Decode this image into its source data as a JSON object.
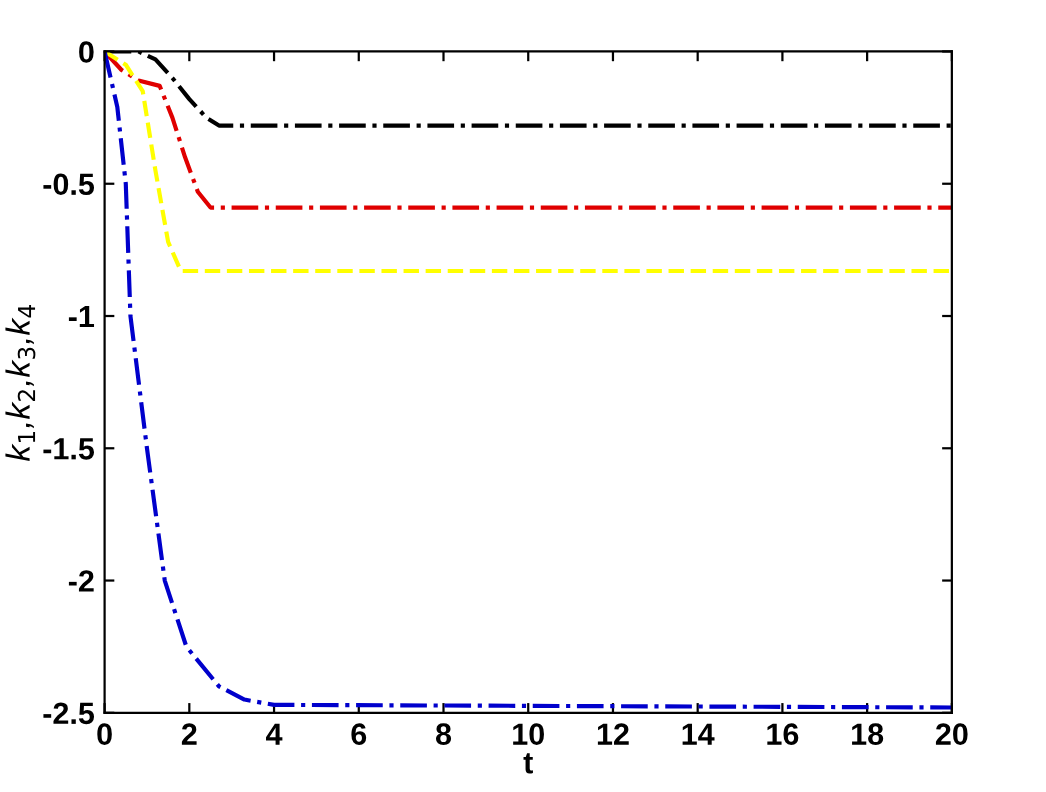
{
  "chart_data": {
    "type": "line",
    "xlabel": "t",
    "ylabel": "k$_{1}$,k$_{2}$,k$_{3}$,k$_{4}$",
    "xlim": [
      0,
      20
    ],
    "ylim": [
      -2.5,
      0
    ],
    "xticks": [
      0,
      2,
      4,
      6,
      8,
      10,
      12,
      14,
      16,
      18,
      20
    ],
    "yticks": [
      {
        "value": 0,
        "label": "0"
      },
      {
        "value": -0.5,
        "label": "-0.5"
      },
      {
        "value": -1,
        "label": "-1"
      },
      {
        "value": -1.5,
        "label": "-1.5"
      },
      {
        "value": -2,
        "label": "-2"
      },
      {
        "value": -2.5,
        "label": "-2.5"
      }
    ],
    "grid": false,
    "legend": false,
    "marker": "none",
    "series": [
      {
        "color": "#000000",
        "line_style": "dashdot",
        "x": [
          0,
          0.8,
          1.2,
          1.6,
          2.0,
          2.4,
          2.7,
          20
        ],
        "values": [
          0,
          0,
          -0.03,
          -0.1,
          -0.18,
          -0.25,
          -0.28,
          -0.28
        ]
      },
      {
        "color": "#e00000",
        "line_style": "dashdot",
        "x": [
          0,
          0.4,
          0.8,
          1.3,
          1.6,
          1.9,
          2.2,
          2.5,
          20
        ],
        "values": [
          0,
          -0.07,
          -0.11,
          -0.13,
          -0.25,
          -0.4,
          -0.53,
          -0.59,
          -0.59
        ]
      },
      {
        "color": "#ffff00",
        "line_style": "dashed",
        "x": [
          0,
          0.5,
          0.9,
          1.2,
          1.5,
          1.8,
          20
        ],
        "values": [
          0,
          -0.05,
          -0.15,
          -0.45,
          -0.72,
          -0.83,
          -0.83
        ]
      },
      {
        "color": "#0000cc",
        "line_style": "dashdot",
        "x": [
          0,
          0.3,
          0.5,
          0.61,
          1.0,
          1.42,
          1.93,
          2.7,
          3.3,
          4.0,
          20
        ],
        "values": [
          0,
          -0.21,
          -0.5,
          -1,
          -1.5,
          -2,
          -2.25,
          -2.4,
          -2.45,
          -2.47,
          -2.48
        ]
      }
    ]
  }
}
